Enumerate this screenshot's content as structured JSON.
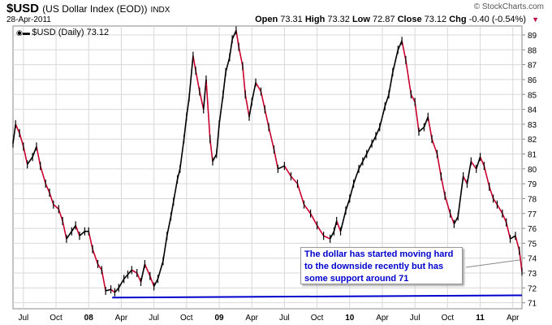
{
  "header": {
    "symbol": "$USD",
    "name": "(US Dollar Index (EOD))",
    "exchange": "INDX",
    "date": "28-Apr-2011",
    "brand": "© StockCharts.com",
    "open_label": "Open",
    "open": "73.31",
    "high_label": "High",
    "high": "73.32",
    "low_label": "Low",
    "low": "72.87",
    "close_label": "Close",
    "close": "73.12",
    "chg_label": "Chg",
    "chg": "-0.40 (-0.54%)"
  },
  "legend": {
    "label": "$USD (Daily) 73.12"
  },
  "annotation": {
    "text_lines": [
      "The dollar has started moving hard",
      "to the downside recently but has",
      "some support around 71"
    ]
  },
  "colors": {
    "price": "#000000",
    "down_bar": "#c8002e",
    "support": "#0000cc",
    "grid": "#d8d8d8"
  },
  "chart_data": {
    "type": "line",
    "title": "$USD (US Dollar Index (EOD))",
    "ylim": [
      70.6,
      89.6
    ],
    "yticks": [
      71,
      72,
      73,
      74,
      75,
      76,
      77,
      78,
      79,
      80,
      81,
      82,
      83,
      84,
      85,
      86,
      87,
      88,
      89
    ],
    "xticks": [
      {
        "label": "Jul",
        "x": 2007.5
      },
      {
        "label": "Oct",
        "x": 2007.75
      },
      {
        "label": "08",
        "x": 2008.0
      },
      {
        "label": "Apr",
        "x": 2008.25
      },
      {
        "label": "Jul",
        "x": 2008.5
      },
      {
        "label": "Oct",
        "x": 2008.75
      },
      {
        "label": "09",
        "x": 2009.0
      },
      {
        "label": "Apr",
        "x": 2009.25
      },
      {
        "label": "Jul",
        "x": 2009.5
      },
      {
        "label": "Oct",
        "x": 2009.75
      },
      {
        "label": "10",
        "x": 2010.0
      },
      {
        "label": "Apr",
        "x": 2010.25
      },
      {
        "label": "Jul",
        "x": 2010.5
      },
      {
        "label": "Oct",
        "x": 2010.75
      },
      {
        "label": "11",
        "x": 2011.0
      },
      {
        "label": "Apr",
        "x": 2011.25
      }
    ],
    "xlim": [
      2007.42,
      2011.32
    ],
    "series": [
      {
        "x": [
          2007.42,
          2007.44,
          2007.47,
          2007.5,
          2007.53,
          2007.57,
          2007.6,
          2007.63,
          2007.67,
          2007.7,
          2007.73,
          2007.77,
          2007.8,
          2007.83,
          2007.87,
          2007.9,
          2007.93,
          2007.97,
          2008.0,
          2008.03,
          2008.07,
          2008.1,
          2008.13,
          2008.17,
          2008.2,
          2008.23,
          2008.27,
          2008.3,
          2008.33,
          2008.37,
          2008.4,
          2008.43,
          2008.47,
          2008.5,
          2008.53,
          2008.57,
          2008.6,
          2008.63,
          2008.65,
          2008.68,
          2008.7,
          2008.73,
          2008.75,
          2008.77,
          2008.8,
          2008.82,
          2008.85,
          2008.88,
          2008.9,
          2008.93,
          2008.95,
          2008.98,
          2009.0,
          2009.03,
          2009.05,
          2009.08,
          2009.1,
          2009.13,
          2009.15,
          2009.18,
          2009.2,
          2009.23,
          2009.25,
          2009.28,
          2009.32,
          2009.35,
          2009.38,
          2009.42,
          2009.45,
          2009.5,
          2009.55,
          2009.6,
          2009.65,
          2009.7,
          2009.75,
          2009.8,
          2009.85,
          2009.88,
          2009.9,
          2009.93,
          2009.97,
          2010.0,
          2010.03,
          2010.07,
          2010.1,
          2010.13,
          2010.17,
          2010.2,
          2010.23,
          2010.27,
          2010.3,
          2010.33,
          2010.37,
          2010.4,
          2010.43,
          2010.47,
          2010.5,
          2010.53,
          2010.57,
          2010.6,
          2010.63,
          2010.67,
          2010.7,
          2010.73,
          2010.77,
          2010.8,
          2010.83,
          2010.87,
          2010.9,
          2010.93,
          2010.97,
          2011.0,
          2011.03,
          2011.07,
          2011.1,
          2011.13,
          2011.17,
          2011.2,
          2011.23,
          2011.27,
          2011.3,
          2011.32
        ],
        "y": [
          81.7,
          83.0,
          82.4,
          81.5,
          80.3,
          80.8,
          81.5,
          80.2,
          79.0,
          78.4,
          77.6,
          77.3,
          76.5,
          75.3,
          75.8,
          76.2,
          75.5,
          75.8,
          75.8,
          74.6,
          73.6,
          73.2,
          71.8,
          71.9,
          71.7,
          72.0,
          72.6,
          72.9,
          73.2,
          73.0,
          72.4,
          73.6,
          72.8,
          72.1,
          72.6,
          73.8,
          75.5,
          76.8,
          77.8,
          79.3,
          80.0,
          82.0,
          83.5,
          84.8,
          87.6,
          86.6,
          85.2,
          84.0,
          86.0,
          82.0,
          80.5,
          81.0,
          83.0,
          85.0,
          86.5,
          87.5,
          88.7,
          89.3,
          88.2,
          86.9,
          85.0,
          83.5,
          84.5,
          85.8,
          85.2,
          84.0,
          82.8,
          81.3,
          80.0,
          80.2,
          79.5,
          79.0,
          77.6,
          77.0,
          76.2,
          75.5,
          75.3,
          75.8,
          76.5,
          75.8,
          77.2,
          78.0,
          79.0,
          80.0,
          80.5,
          81.0,
          81.7,
          82.2,
          82.8,
          84.2,
          85.0,
          86.5,
          88.0,
          88.6,
          87.3,
          85.0,
          84.5,
          82.5,
          82.8,
          83.5,
          82.0,
          81.0,
          79.5,
          78.2,
          77.0,
          76.3,
          76.8,
          79.5,
          79.0,
          80.5,
          80.0,
          80.8,
          80.2,
          78.8,
          78.0,
          77.6,
          77.0,
          76.4,
          75.3,
          75.5,
          74.5,
          73.1
        ]
      }
    ],
    "support_line": {
      "x": [
        2008.18,
        2011.32
      ],
      "y": [
        71.35,
        71.5
      ]
    }
  }
}
